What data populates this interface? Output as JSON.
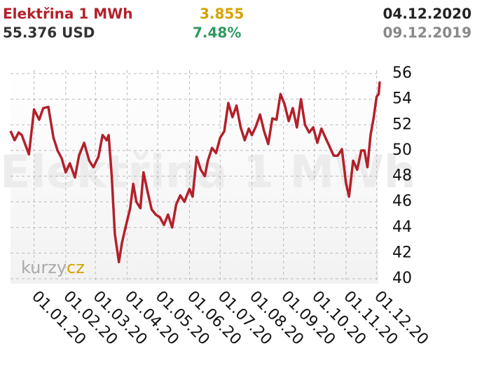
{
  "chart_data": {
    "type": "line",
    "title": "Elektřina 1 MWh",
    "change": "3.855",
    "date_end": "04.12.2020",
    "price": "55.376 USD",
    "change_pct": "7.48%",
    "date_start": "09.12.2019",
    "logo": [
      "kurzy",
      "cz"
    ],
    "xlim": [
      "2019-12-09",
      "2020-12-04"
    ],
    "xticks": [
      {
        "value": "2020-01-01",
        "label": "01.01.20"
      },
      {
        "value": "2020-02-01",
        "label": "01.02.20"
      },
      {
        "value": "2020-03-01",
        "label": "01.03.20"
      },
      {
        "value": "2020-04-01",
        "label": "01.04.20"
      },
      {
        "value": "2020-05-01",
        "label": "01.05.20"
      },
      {
        "value": "2020-06-01",
        "label": "01.06.20"
      },
      {
        "value": "2020-07-01",
        "label": "01.07.20"
      },
      {
        "value": "2020-08-01",
        "label": "01.08.20"
      },
      {
        "value": "2020-09-01",
        "label": "01.09.20"
      },
      {
        "value": "2020-10-01",
        "label": "01.10.20"
      },
      {
        "value": "2020-11-01",
        "label": "01.11.20"
      },
      {
        "value": "2020-12-01",
        "label": "01.12.20"
      }
    ],
    "ylim": [
      40,
      56
    ],
    "yticks": [
      40,
      42,
      44,
      46,
      48,
      50,
      52,
      54,
      56
    ],
    "grid": true,
    "x": [
      "2019-12-09",
      "2019-12-13",
      "2019-12-17",
      "2019-12-20",
      "2019-12-27",
      "2020-01-01",
      "2020-01-06",
      "2020-01-10",
      "2020-01-15",
      "2020-01-20",
      "2020-01-24",
      "2020-01-28",
      "2020-02-01",
      "2020-02-05",
      "2020-02-10",
      "2020-02-14",
      "2020-02-19",
      "2020-02-24",
      "2020-02-28",
      "2020-03-04",
      "2020-03-08",
      "2020-03-12",
      "2020-03-14",
      "2020-03-17",
      "2020-03-20",
      "2020-03-24",
      "2020-03-27",
      "2020-03-31",
      "2020-04-04",
      "2020-04-07",
      "2020-04-10",
      "2020-04-14",
      "2020-04-17",
      "2020-04-21",
      "2020-04-25",
      "2020-04-29",
      "2020-05-03",
      "2020-05-07",
      "2020-05-11",
      "2020-05-15",
      "2020-05-19",
      "2020-05-23",
      "2020-05-27",
      "2020-06-01",
      "2020-06-04",
      "2020-06-08",
      "2020-06-12",
      "2020-06-16",
      "2020-06-19",
      "2020-06-23",
      "2020-06-27",
      "2020-07-01",
      "2020-07-05",
      "2020-07-09",
      "2020-07-13",
      "2020-07-17",
      "2020-07-21",
      "2020-07-25",
      "2020-07-29",
      "2020-08-01",
      "2020-08-05",
      "2020-08-09",
      "2020-08-13",
      "2020-08-17",
      "2020-08-21",
      "2020-08-25",
      "2020-08-29",
      "2020-09-02",
      "2020-09-06",
      "2020-09-10",
      "2020-09-14",
      "2020-09-18",
      "2020-09-22",
      "2020-09-26",
      "2020-09-30",
      "2020-10-04",
      "2020-10-08",
      "2020-10-12",
      "2020-10-16",
      "2020-10-20",
      "2020-10-24",
      "2020-10-28",
      "2020-11-01",
      "2020-11-04",
      "2020-11-08",
      "2020-11-12",
      "2020-11-16",
      "2020-11-19",
      "2020-11-22",
      "2020-11-25",
      "2020-11-28",
      "2020-12-01",
      "2020-12-03",
      "2020-12-04"
    ],
    "series": [
      {
        "name": "Elektřina 1 MWh",
        "color": "#b3202a",
        "values": [
          51.52,
          50.8,
          51.4,
          51.2,
          49.7,
          53.2,
          52.4,
          53.3,
          53.4,
          51.0,
          50.0,
          49.4,
          48.3,
          49.0,
          47.9,
          49.6,
          50.6,
          49.2,
          48.7,
          49.5,
          51.2,
          50.8,
          51.2,
          48.0,
          43.5,
          41.3,
          42.8,
          44.2,
          45.5,
          47.4,
          46.0,
          45.5,
          48.3,
          46.8,
          45.4,
          45.0,
          44.8,
          44.2,
          45.0,
          44.0,
          45.8,
          46.5,
          46.0,
          47.0,
          46.4,
          49.5,
          48.5,
          48.0,
          49.2,
          50.2,
          49.8,
          51.0,
          51.5,
          53.7,
          52.6,
          53.5,
          51.8,
          50.8,
          51.7,
          51.2,
          51.9,
          52.8,
          51.5,
          50.5,
          52.5,
          52.4,
          54.4,
          53.6,
          52.3,
          53.3,
          51.8,
          54.0,
          52.0,
          51.4,
          51.8,
          50.6,
          51.7,
          51.0,
          50.3,
          49.6,
          49.6,
          50.1,
          47.5,
          46.4,
          49.2,
          48.5,
          50.0,
          50.0,
          48.7,
          51.2,
          52.5,
          54.2,
          54.4,
          55.376
        ]
      }
    ]
  }
}
